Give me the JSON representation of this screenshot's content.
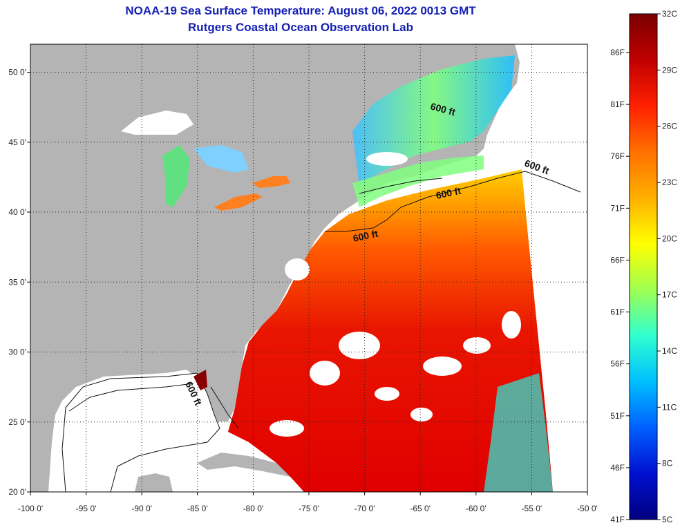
{
  "header": {
    "title": "NOAA-19 Sea Surface Temperature:  August 06, 2022 0013 GMT",
    "subtitle": "Rutgers Coastal Ocean Observation Lab"
  },
  "map": {
    "lon_range": [
      -100,
      -50
    ],
    "lat_range": [
      20,
      52
    ],
    "lat_ticks": [
      {
        "value": 50,
        "label": "50 0'"
      },
      {
        "value": 45,
        "label": "45 0'"
      },
      {
        "value": 40,
        "label": "40 0'"
      },
      {
        "value": 35,
        "label": "35 0'"
      },
      {
        "value": 30,
        "label": "30 0'"
      },
      {
        "value": 25,
        "label": "25 0'"
      },
      {
        "value": 20,
        "label": "20 0'"
      }
    ],
    "lon_ticks": [
      {
        "value": -100,
        "label": "-100 0'"
      },
      {
        "value": -95,
        "label": "-95 0'"
      },
      {
        "value": -90,
        "label": "-90 0'"
      },
      {
        "value": -85,
        "label": "-85 0'"
      },
      {
        "value": -80,
        "label": "-80 0'"
      },
      {
        "value": -75,
        "label": "-75 0'"
      },
      {
        "value": -70,
        "label": "-70 0'"
      },
      {
        "value": -65,
        "label": "-65 0'"
      },
      {
        "value": -60,
        "label": "-60 0'"
      },
      {
        "value": -55,
        "label": "-55 0'"
      },
      {
        "value": -50,
        "label": "-50 0'"
      }
    ],
    "contour_labels": [
      "600 ft",
      "600 ft",
      "600 ft",
      "600 ft",
      "600 ft"
    ],
    "colors": {
      "land": "#b4b4b4",
      "no_data": "#ffffff",
      "grid": "#222222"
    }
  },
  "colorbar": {
    "celsius_labels": [
      "32C",
      "29C",
      "26C",
      "23C",
      "20C",
      "17C",
      "14C",
      "11C",
      "8C",
      "5C"
    ],
    "fahrenheit_labels": [
      "86F",
      "81F",
      "76F",
      "71F",
      "66F",
      "61F",
      "56F",
      "51F",
      "46F",
      "41F"
    ],
    "stops": [
      "#7a0000",
      "#c00000",
      "#ff2000",
      "#ff7000",
      "#ffb000",
      "#ffff00",
      "#a0ff50",
      "#30ffd0",
      "#00c0ff",
      "#0060ff",
      "#0010d0",
      "#000080"
    ]
  }
}
